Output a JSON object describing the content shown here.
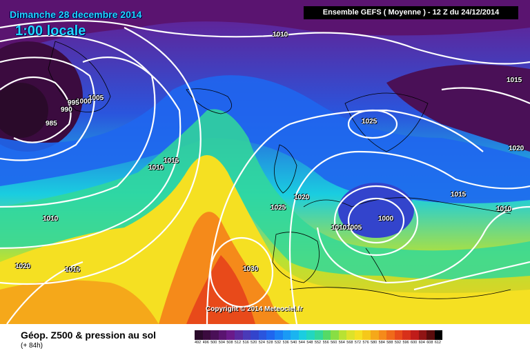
{
  "header": {
    "date": "Dimanche 28 decembre 2014",
    "time": "1:00 locale",
    "model_run": "Ensemble GEFS  ( Moyenne )  -  12 Z du 24/12/2014"
  },
  "map": {
    "copyright": "Copyright © 2014 Meteociel.fr",
    "pressure_units": "hPa",
    "isobar_labels": [
      "1010",
      "1005",
      "1000",
      "990",
      "995",
      "985",
      "1015",
      "1010",
      "1010",
      "1025",
      "1020",
      "1010",
      "1005",
      "1000",
      "1025",
      "1015",
      "1020",
      "1015",
      "1010",
      "1030",
      "1020",
      "1015",
      "1020",
      "1015"
    ],
    "pressure_centers": [
      {
        "type": "low",
        "value": "1000",
        "location": "Central Europe"
      },
      {
        "type": "high",
        "value": "1030",
        "location": "Iberian Atlantic"
      },
      {
        "type": "low",
        "value": "985",
        "location": "South of Greenland"
      },
      {
        "type": "high",
        "value": "1025",
        "location": "Scandinavia"
      }
    ]
  },
  "footer": {
    "title": "Géop. Z500 & pression au sol",
    "subtitle": "(+ 84h)"
  },
  "legend": {
    "values": [
      "492",
      "496",
      "500",
      "504",
      "508",
      "512",
      "516",
      "520",
      "524",
      "528",
      "532",
      "536",
      "540",
      "544",
      "548",
      "552",
      "556",
      "560",
      "564",
      "568",
      "572",
      "576",
      "580",
      "584",
      "588",
      "592",
      "596",
      "600",
      "604",
      "608",
      "612"
    ],
    "colors": [
      "#2a0a2a",
      "#3b0b3f",
      "#4a1057",
      "#5a1470",
      "#6a1a8a",
      "#5a2aa0",
      "#4a3ab8",
      "#3344cc",
      "#2a55dd",
      "#1f66ee",
      "#1a80f5",
      "#1a9af5",
      "#1ab4f0",
      "#1acde0",
      "#22d6c0",
      "#33d899",
      "#55da66",
      "#88de44",
      "#b8e233",
      "#dde22a",
      "#f5e022",
      "#f5c81a",
      "#f5a81a",
      "#f58a1a",
      "#f06a1a",
      "#e84a1a",
      "#d8301a",
      "#c01c1a",
      "#901414",
      "#5a0c0c",
      "#000000"
    ]
  }
}
